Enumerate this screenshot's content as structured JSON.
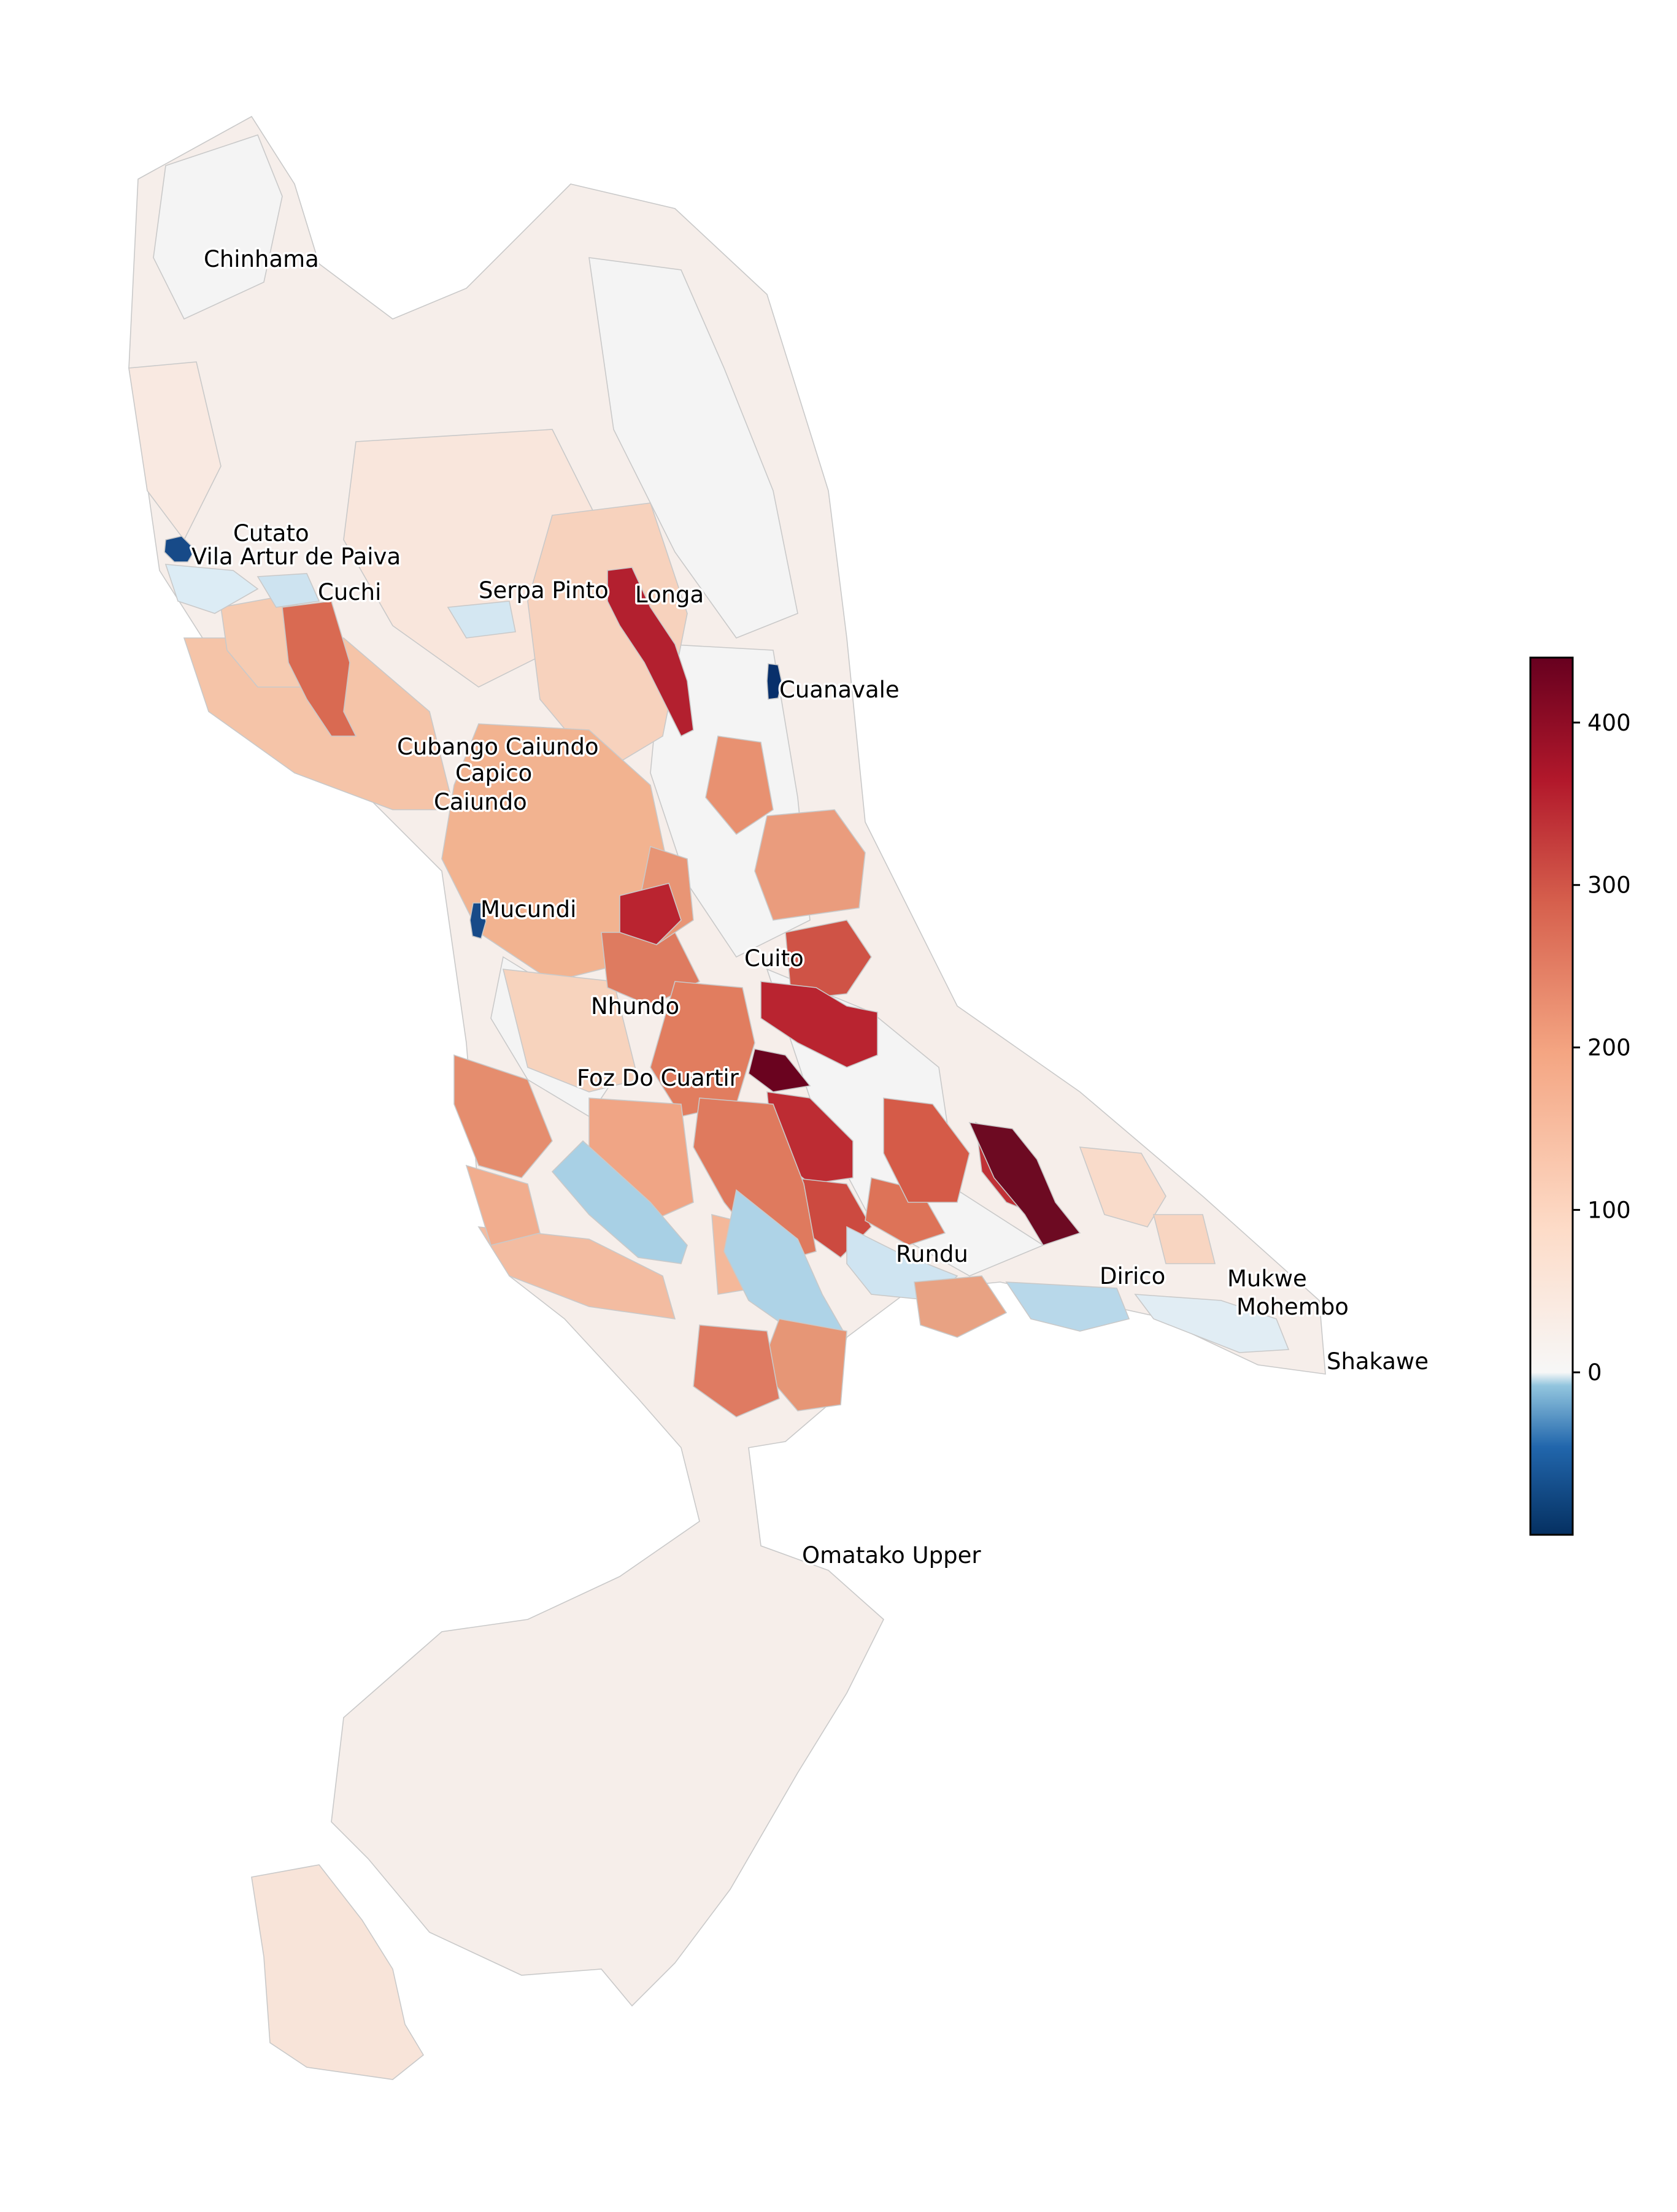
{
  "colors": {
    "below_zero_strong": "#1a4d8c",
    "below_zero_light": "#a6cde4",
    "near_zero": "#f7f7f7",
    "low_positive": "#f8e7df",
    "mid_positive": "#f4b99a",
    "high_positive": "#d6604d",
    "very_high": "#b2182b",
    "max": "#67001f",
    "boundary": "#c9c9c9"
  },
  "colorbar": {
    "colormap": "RdBu_r",
    "range": [
      -100,
      440
    ],
    "ticks": [
      "400",
      "300",
      "200",
      "100",
      "0"
    ],
    "tick_values": [
      400,
      300,
      200,
      100,
      0
    ]
  },
  "places": [
    "Chinhama",
    "Cutato",
    "Vila Artur de Paiva",
    "Cuchi",
    "Serpa Pinto",
    "Longa",
    "Cuanavale",
    "Cubango Caiundo",
    "Capico",
    "Caiundo",
    "Mucundi",
    "Cuito",
    "Nhundo",
    "Foz Do Cuartir",
    "Rundu",
    "Dirico",
    "Mukwe",
    "Mohembo",
    "Shakawe",
    "Omatako Upper"
  ]
}
